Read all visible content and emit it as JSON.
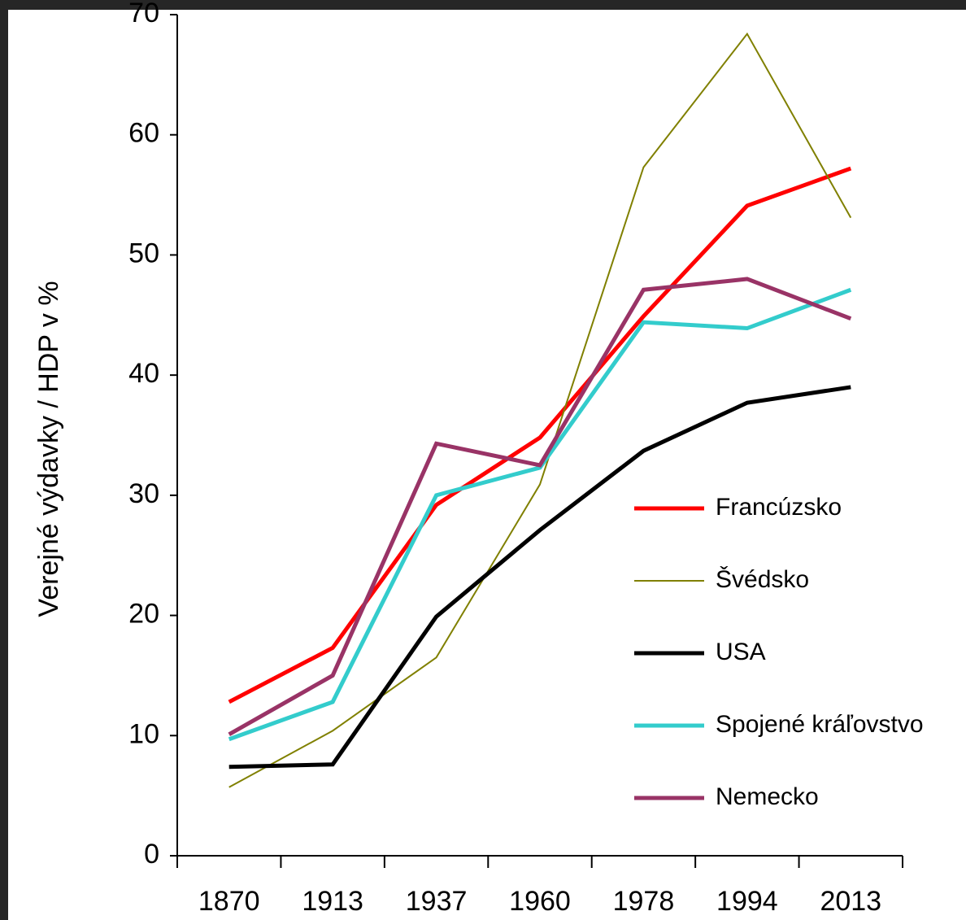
{
  "chart_data": {
    "type": "line",
    "y_label": "Verejné výdavky / HDP v %",
    "categories": [
      "1870",
      "1913",
      "1937",
      "1960",
      "1978",
      "1994",
      "2013"
    ],
    "series": [
      {
        "name": "Francúzsko",
        "color": "#ff0000",
        "width": 5,
        "values": [
          12.8,
          17.3,
          29.2,
          34.8,
          44.9,
          54.1,
          57.2
        ]
      },
      {
        "name": "Švédsko",
        "color": "#808000",
        "width": 2,
        "values": [
          5.7,
          10.4,
          16.5,
          30.9,
          57.3,
          68.4,
          53.1
        ]
      },
      {
        "name": "USA",
        "color": "#000000",
        "width": 5,
        "values": [
          7.4,
          7.6,
          19.9,
          27.1,
          33.7,
          37.7,
          39.0
        ]
      },
      {
        "name": "Spojené kráľovstvo",
        "color": "#33cccc",
        "width": 5,
        "values": [
          9.7,
          12.8,
          30.0,
          32.3,
          44.4,
          43.9,
          47.1
        ]
      },
      {
        "name": "Nemecko",
        "color": "#993366",
        "width": 5,
        "values": [
          10.1,
          15.0,
          34.3,
          32.5,
          47.1,
          48.0,
          44.7
        ]
      }
    ],
    "ylim": [
      0,
      70
    ],
    "yticks": [
      0,
      10,
      20,
      30,
      40,
      50,
      60,
      70
    ]
  }
}
